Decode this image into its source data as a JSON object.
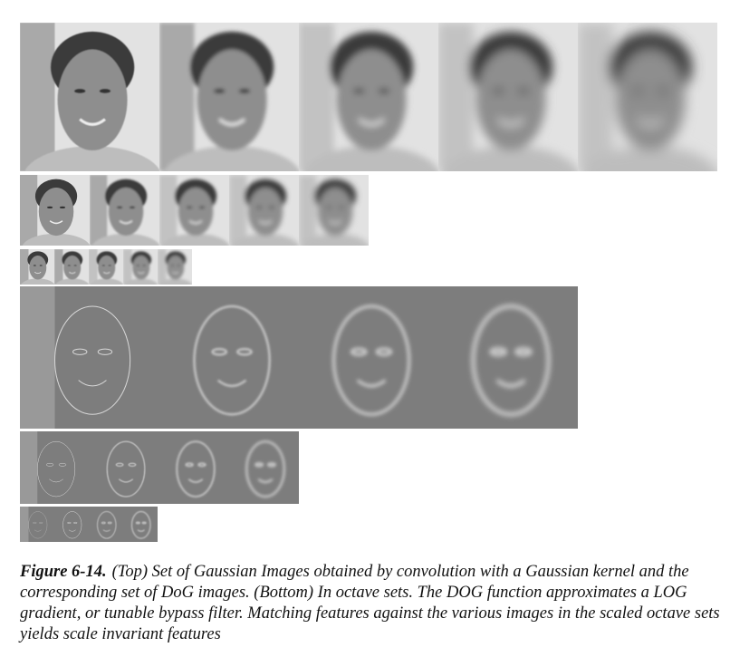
{
  "figure": {
    "label": "Figure 6-14.",
    "caption": "(Top) Set of Gaussian Images obtained by convolution with a Gaussian kernel and the corresponding set of DoG images. (Bottom) In octave sets. The DOG function approximates a LOG gradient, or tunable bypass filter. Matching features against the various images in the scaled octave sets yields scale invariant features"
  }
}
